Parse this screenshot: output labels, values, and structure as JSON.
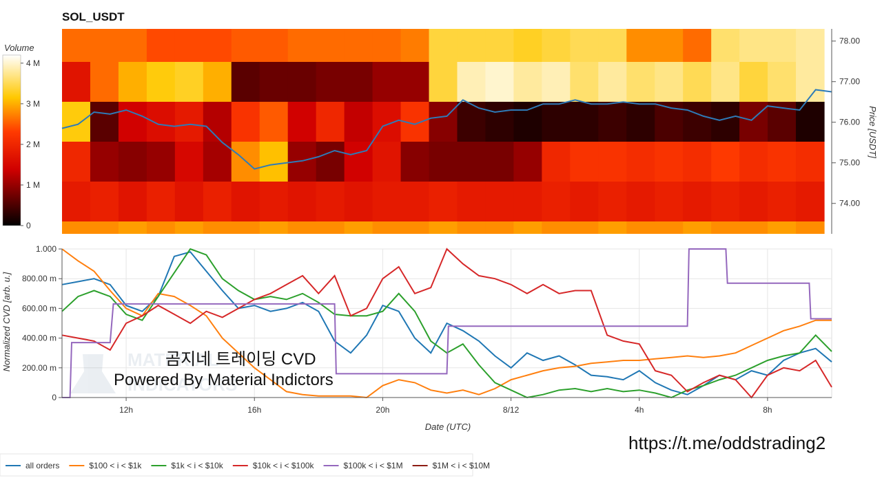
{
  "chart_data": [
    {
      "type": "heatmap",
      "title": "SOL_USDT",
      "ylabel": "Price [USDT]",
      "y_ticks": [
        "74.00",
        "75.00",
        "76.00",
        "77.00",
        "78.00"
      ],
      "ylim": [
        73.25,
        78.3
      ],
      "colorbar": {
        "label": "Volume",
        "ticks": [
          "0",
          "1 M",
          "2 M",
          "3 M",
          "4 M"
        ],
        "range": [
          0,
          4200000
        ]
      },
      "price_bands": [
        {
          "label": "~78.1",
          "volume_profile": [
            2.6,
            2.6,
            2.6,
            2.4,
            2.4,
            2.4,
            2.5,
            2.5,
            2.6,
            2.6,
            2.6,
            2.6,
            2.7,
            3.4,
            3.4,
            3.4,
            3.3,
            3.4,
            3.5,
            3.5,
            2.8,
            2.8,
            2.6,
            3.6,
            3.7,
            3.7,
            3.8
          ]
        },
        {
          "label": "~77.0",
          "volume_profile": [
            1.7,
            2.6,
            3.0,
            3.2,
            3.3,
            3.0,
            0.6,
            0.7,
            0.7,
            0.8,
            0.8,
            1.0,
            1.0,
            3.4,
            3.9,
            4.0,
            3.8,
            3.9,
            3.6,
            3.8,
            3.6,
            3.7,
            3.5,
            3.7,
            3.4,
            3.6,
            3.8
          ]
        },
        {
          "label": "~76.0",
          "volume_profile": [
            3.2,
            0.6,
            1.4,
            1.6,
            1.8,
            1.2,
            2.2,
            2.5,
            1.4,
            2.0,
            1.3,
            1.6,
            2.2,
            0.9,
            0.4,
            0.3,
            0.2,
            0.3,
            0.3,
            0.4,
            0.3,
            0.5,
            0.4,
            0.3,
            0.8,
            0.6,
            0.2
          ]
        },
        {
          "label": "~75.0",
          "volume_profile": [
            2.0,
            1.0,
            0.9,
            1.0,
            1.5,
            1.1,
            2.8,
            3.1,
            1.0,
            0.8,
            1.4,
            1.7,
            0.9,
            0.8,
            0.8,
            0.8,
            1.0,
            2.0,
            2.2,
            2.2,
            2.1,
            2.2,
            2.1,
            2.3,
            2.1,
            2.2,
            2.1
          ]
        },
        {
          "label": "~74.0",
          "volume_profile": [
            1.8,
            1.9,
            1.7,
            1.9,
            1.7,
            1.9,
            1.7,
            1.8,
            1.7,
            1.8,
            1.7,
            1.8,
            1.8,
            1.9,
            1.8,
            1.8,
            1.8,
            1.9,
            1.8,
            1.9,
            1.8,
            1.9,
            1.8,
            1.9,
            1.8,
            1.9,
            1.8
          ]
        },
        {
          "label": "~73.3",
          "volume_profile": [
            2.8,
            2.8,
            2.9,
            2.8,
            2.9,
            2.8,
            2.8,
            2.9,
            2.8,
            2.8,
            2.9,
            2.8,
            2.8,
            2.9,
            2.8,
            2.8,
            2.9,
            2.8,
            2.8,
            2.9,
            2.8,
            2.8,
            2.9,
            2.8,
            2.8,
            2.9,
            2.8
          ]
        }
      ],
      "price_line": {
        "x": [
          0,
          0.5,
          1,
          1.5,
          2,
          2.5,
          3,
          3.5,
          4,
          4.5,
          5,
          5.5,
          6,
          6.5,
          7,
          7.5,
          8,
          8.5,
          9,
          9.5,
          10,
          10.5,
          11,
          11.5,
          12,
          12.5,
          13,
          13.5,
          14,
          14.5,
          15,
          15.5,
          16,
          16.5,
          17,
          17.5,
          18,
          18.5,
          19,
          19.5,
          20,
          20.5,
          21,
          21.5,
          22,
          22.5,
          23,
          23.5,
          24
        ],
        "y": [
          75.85,
          75.95,
          76.25,
          76.2,
          76.3,
          76.15,
          75.95,
          75.9,
          75.95,
          75.9,
          75.5,
          75.2,
          74.85,
          74.95,
          75.0,
          75.05,
          75.15,
          75.3,
          75.2,
          75.3,
          75.9,
          76.05,
          75.95,
          76.1,
          76.15,
          76.55,
          76.35,
          76.25,
          76.3,
          76.3,
          76.45,
          76.45,
          76.55,
          76.45,
          76.45,
          76.5,
          76.45,
          76.45,
          76.35,
          76.3,
          76.15,
          76.05,
          76.15,
          76.05,
          76.4,
          76.35,
          76.3,
          76.8,
          76.75
        ]
      }
    },
    {
      "type": "line",
      "xlabel": "Date (UTC)",
      "ylabel": "Normalized CVD [arb. u.]",
      "y_ticks": [
        "0",
        "200.00 m",
        "400.00 m",
        "600.00 m",
        "800.00 m",
        "1.000"
      ],
      "x_ticks": [
        {
          "label": "12h",
          "x": 2
        },
        {
          "label": "16h",
          "x": 6
        },
        {
          "label": "20h",
          "x": 10
        },
        {
          "label": "8/12",
          "x": 14
        },
        {
          "label": "4h",
          "x": 18
        },
        {
          "label": "8h",
          "x": 22
        }
      ],
      "xlim": [
        0,
        24
      ],
      "ylim": [
        0,
        1
      ],
      "grid": true,
      "series": [
        {
          "name": "all orders",
          "color": "#1f77b4",
          "x": [
            0,
            0.5,
            1,
            1.5,
            2,
            2.5,
            3,
            3.5,
            4,
            4.5,
            5,
            5.5,
            6,
            6.5,
            7,
            7.5,
            8,
            8.5,
            9,
            9.5,
            10,
            10.5,
            11,
            11.5,
            12,
            12.5,
            13,
            13.5,
            14,
            14.5,
            15,
            15.5,
            16,
            16.5,
            17,
            17.5,
            18,
            18.5,
            19,
            19.5,
            20,
            20.5,
            21,
            21.5,
            22,
            22.5,
            23,
            23.5,
            24
          ],
          "y": [
            0.76,
            0.78,
            0.8,
            0.76,
            0.62,
            0.58,
            0.68,
            0.95,
            0.98,
            0.85,
            0.72,
            0.6,
            0.62,
            0.58,
            0.6,
            0.64,
            0.58,
            0.38,
            0.3,
            0.42,
            0.62,
            0.58,
            0.4,
            0.3,
            0.5,
            0.45,
            0.38,
            0.28,
            0.2,
            0.3,
            0.25,
            0.28,
            0.22,
            0.15,
            0.14,
            0.12,
            0.18,
            0.1,
            0.05,
            0.02,
            0.08,
            0.15,
            0.12,
            0.18,
            0.15,
            0.25,
            0.3,
            0.33,
            0.24
          ]
        },
        {
          "name": "$100 < i < $1k",
          "color": "#ff7f0e",
          "x": [
            0,
            0.5,
            1,
            1.5,
            2,
            2.5,
            3,
            3.5,
            4,
            4.5,
            5,
            5.5,
            6,
            6.5,
            7,
            7.5,
            8,
            8.5,
            9,
            9.5,
            10,
            10.5,
            11,
            11.5,
            12,
            12.5,
            13,
            13.5,
            14,
            14.5,
            15,
            15.5,
            16,
            16.5,
            17,
            17.5,
            18,
            18.5,
            19,
            19.5,
            20,
            20.5,
            21,
            21.5,
            22,
            22.5,
            23,
            23.5,
            24
          ],
          "y": [
            1.0,
            0.92,
            0.85,
            0.72,
            0.6,
            0.55,
            0.7,
            0.68,
            0.62,
            0.55,
            0.4,
            0.3,
            0.2,
            0.12,
            0.04,
            0.02,
            0.01,
            0.01,
            0.01,
            0.0,
            0.08,
            0.12,
            0.1,
            0.05,
            0.03,
            0.05,
            0.02,
            0.06,
            0.12,
            0.15,
            0.18,
            0.2,
            0.21,
            0.23,
            0.24,
            0.25,
            0.25,
            0.26,
            0.27,
            0.28,
            0.27,
            0.28,
            0.3,
            0.35,
            0.4,
            0.45,
            0.48,
            0.52,
            0.52
          ]
        },
        {
          "name": "$1k < i < $10k",
          "color": "#2ca02c",
          "x": [
            0,
            0.5,
            1,
            1.5,
            2,
            2.5,
            3,
            3.5,
            4,
            4.5,
            5,
            5.5,
            6,
            6.5,
            7,
            7.5,
            8,
            8.5,
            9,
            9.5,
            10,
            10.5,
            11,
            11.5,
            12,
            12.5,
            13,
            13.5,
            14,
            14.5,
            15,
            15.5,
            16,
            16.5,
            17,
            17.5,
            18,
            18.5,
            19,
            19.5,
            20,
            20.5,
            21,
            21.5,
            22,
            22.5,
            23,
            23.5,
            24
          ],
          "y": [
            0.58,
            0.68,
            0.72,
            0.68,
            0.56,
            0.52,
            0.68,
            0.84,
            1.0,
            0.96,
            0.8,
            0.72,
            0.66,
            0.68,
            0.66,
            0.7,
            0.64,
            0.56,
            0.55,
            0.55,
            0.58,
            0.7,
            0.58,
            0.38,
            0.3,
            0.36,
            0.22,
            0.1,
            0.05,
            0.0,
            0.02,
            0.05,
            0.06,
            0.04,
            0.06,
            0.04,
            0.05,
            0.03,
            0.0,
            0.05,
            0.08,
            0.12,
            0.15,
            0.2,
            0.25,
            0.28,
            0.3,
            0.42,
            0.31
          ]
        },
        {
          "name": "$10k < i < $100k",
          "color": "#d62728",
          "x": [
            0,
            0.5,
            1,
            1.5,
            2,
            2.5,
            3,
            3.5,
            4,
            4.5,
            5,
            5.5,
            6,
            6.5,
            7,
            7.5,
            8,
            8.5,
            9,
            9.5,
            10,
            10.5,
            11,
            11.5,
            12,
            12.5,
            13,
            13.5,
            14,
            14.5,
            15,
            15.5,
            16,
            16.5,
            17,
            17.5,
            18,
            18.5,
            19,
            19.5,
            20,
            20.5,
            21,
            21.5,
            22,
            22.5,
            23,
            23.5,
            24
          ],
          "y": [
            0.42,
            0.4,
            0.38,
            0.32,
            0.5,
            0.55,
            0.62,
            0.56,
            0.5,
            0.58,
            0.54,
            0.6,
            0.66,
            0.7,
            0.76,
            0.82,
            0.7,
            0.82,
            0.55,
            0.6,
            0.8,
            0.88,
            0.7,
            0.74,
            1.0,
            0.9,
            0.82,
            0.8,
            0.76,
            0.7,
            0.76,
            0.7,
            0.72,
            0.72,
            0.42,
            0.38,
            0.36,
            0.18,
            0.15,
            0.04,
            0.1,
            0.15,
            0.12,
            0.0,
            0.15,
            0.2,
            0.18,
            0.25,
            0.07
          ]
        },
        {
          "name": "$100k < i < $1M",
          "color": "#9467bd",
          "x": [
            0,
            0.25,
            0.3,
            1.5,
            1.6,
            8.5,
            8.55,
            12.0,
            12.05,
            19.5,
            19.55,
            20.7,
            20.75,
            23.3,
            23.35,
            24
          ],
          "y": [
            0.0,
            0.0,
            0.37,
            0.37,
            0.63,
            0.63,
            0.16,
            0.16,
            0.48,
            0.48,
            1.0,
            1.0,
            0.77,
            0.77,
            0.53,
            0.53
          ]
        },
        {
          "name": "$1M < i < $10M",
          "color": "#8c1c13",
          "x": [],
          "y": []
        }
      ]
    }
  ],
  "watermark": {
    "title": "곰지네 트레이딩 CVD",
    "subtitle": "Powered By Material Indictors"
  },
  "url_text": "https://t.me/oddstrading2"
}
